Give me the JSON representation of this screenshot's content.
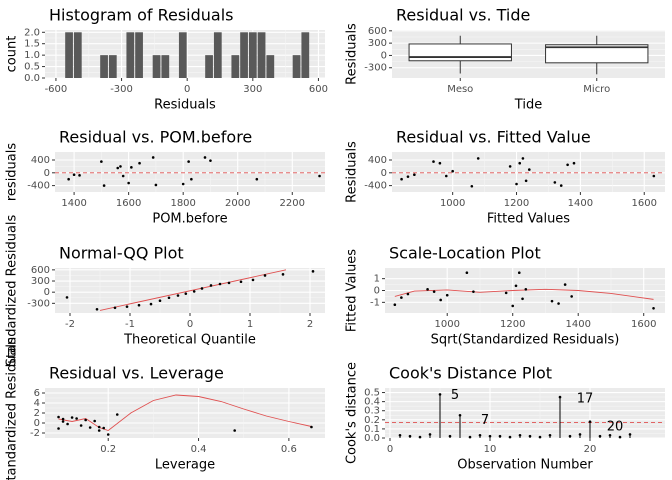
{
  "chart_data": [
    {
      "type": "histogram",
      "title": "Histogram of Residuals",
      "x_label": "Residuals",
      "y_label": "count",
      "bins": [
        -560,
        -520,
        -480,
        -440,
        -400,
        -360,
        -320,
        -280,
        -240,
        -200,
        -160,
        -120,
        -80,
        -40,
        0,
        40,
        80,
        120,
        160,
        200,
        240,
        280,
        320,
        360,
        400,
        440,
        480,
        520,
        560
      ],
      "values": [
        2,
        2,
        0,
        0,
        1,
        1,
        0,
        2,
        2,
        0,
        1,
        1,
        0,
        2,
        0,
        0,
        1,
        2,
        0,
        1,
        2,
        2,
        2,
        1,
        0,
        0,
        1,
        2
      ],
      "color": "#595959",
      "xlim": [
        -650,
        630
      ],
      "xticks": [
        -600,
        -300,
        0,
        300,
        600
      ],
      "ylim": [
        0,
        2.1
      ],
      "yticks": [
        {
          "value": 0,
          "label": "0.0"
        },
        {
          "value": 0.5,
          "label": "0.5"
        },
        {
          "value": 1,
          "label": "1.0"
        },
        {
          "value": 1.5,
          "label": "1.5"
        },
        {
          "value": 2,
          "label": "2.0"
        }
      ],
      "grid": true
    },
    {
      "type": "box",
      "title": "Residual vs. Tide",
      "x_label": "Tide",
      "y_label": "Residuals",
      "categories": [
        "Meso",
        "Micro"
      ],
      "boxes": [
        {
          "min": -440,
          "q1": -130,
          "median": -40,
          "q3": 280,
          "max": 480
        },
        {
          "min": -460,
          "q1": -180,
          "median": 200,
          "q3": 260,
          "max": 480
        }
      ],
      "color": "#ffffff",
      "ylim": [
        -550,
        620
      ],
      "yticks": [
        -300,
        0,
        300,
        600
      ],
      "grid": true
    },
    {
      "type": "scatter",
      "title": "Residual vs. POM.before",
      "x_label": "POM.before",
      "y_label": "residuals",
      "x": [
        1380,
        1400,
        1420,
        1500,
        1510,
        1560,
        1570,
        1580,
        1600,
        1610,
        1640,
        1690,
        1700,
        1800,
        1820,
        1830,
        1880,
        1900,
        2070,
        2300
      ],
      "values": [
        -200,
        -60,
        -80,
        350,
        -400,
        150,
        200,
        -100,
        -320,
        170,
        300,
        480,
        -380,
        -350,
        350,
        -200,
        480,
        380,
        -200,
        -100
      ],
      "color": "#000000",
      "hline": 0,
      "hline_color": "#e05050",
      "xlim": [
        1330,
        2320
      ],
      "xticks": [
        1400,
        1600,
        1800,
        2000,
        2200
      ],
      "ylim": [
        -600,
        650
      ],
      "yticks": [
        -400,
        0,
        400
      ],
      "grid": true
    },
    {
      "type": "scatter",
      "title": "Residual vs. Fitted Value",
      "x_label": "Fitted Values",
      "y_label": "Residuals",
      "x": [
        840,
        860,
        880,
        940,
        960,
        980,
        1000,
        1060,
        1080,
        1180,
        1200,
        1210,
        1220,
        1230,
        1240,
        1320,
        1340,
        1360,
        1380,
        1630
      ],
      "values": [
        -200,
        -120,
        -60,
        350,
        300,
        -100,
        50,
        -420,
        450,
        200,
        -350,
        300,
        450,
        -250,
        100,
        -300,
        -400,
        250,
        300,
        -100
      ],
      "color": "#000000",
      "hline": 0,
      "hline_color": "#e05050",
      "xlim": [
        810,
        1665
      ],
      "xticks": [
        1000,
        1200,
        1400,
        1600
      ],
      "ylim": [
        -600,
        650
      ],
      "yticks": [
        -400,
        0,
        400
      ],
      "grid": true
    },
    {
      "type": "scatter",
      "title": "Normal-QQ Plot",
      "x_label": "Theoretical Quantile",
      "y_label": "Standardized Residuals",
      "x": [
        -2.05,
        -1.55,
        -1.25,
        -1.05,
        -0.85,
        -0.65,
        -0.5,
        -0.35,
        -0.2,
        -0.07,
        0.07,
        0.2,
        0.35,
        0.5,
        0.65,
        0.85,
        1.05,
        1.25,
        1.55,
        2.05
      ],
      "values": [
        -140,
        -460,
        -420,
        -390,
        -350,
        -320,
        -230,
        -150,
        -90,
        -40,
        20,
        100,
        180,
        220,
        250,
        280,
        330,
        450,
        480,
        560
      ],
      "color": "#000000",
      "fit_line": {
        "x": [
          -1.5,
          1.6
        ],
        "values": [
          -490,
          600
        ],
        "color": "#e05050"
      },
      "xlim": [
        -2.25,
        2.25
      ],
      "xticks": [
        -2,
        -1,
        0,
        1,
        2
      ],
      "ylim": [
        -560,
        650
      ],
      "yticks": [
        -300,
        0,
        300,
        600
      ],
      "grid": true
    },
    {
      "type": "scatter",
      "title": "Scale-Location Plot",
      "x_label": "Sqrt(Standardized Residuals)",
      "y_label": "Fitted Values",
      "x": [
        840,
        860,
        880,
        940,
        960,
        980,
        1000,
        1060,
        1080,
        1180,
        1200,
        1210,
        1220,
        1230,
        1240,
        1320,
        1340,
        1360,
        1380,
        1630
      ],
      "values": [
        -1.2,
        -0.6,
        -0.3,
        0.1,
        -0.1,
        -0.8,
        -0.4,
        1.5,
        -0.1,
        -0.2,
        -1.3,
        0.4,
        1.5,
        -0.7,
        0.1,
        -0.9,
        -1.1,
        0.5,
        -0.5,
        -1.5
      ],
      "color": "#000000",
      "fit_line": {
        "x": [
          840,
          900,
          1000,
          1100,
          1200,
          1300,
          1400,
          1500,
          1630
        ],
        "values": [
          -0.5,
          -0.05,
          0.05,
          -0.15,
          0,
          0.1,
          0,
          -0.25,
          -0.75
        ],
        "color": "#e05050"
      },
      "xlim": [
        810,
        1665
      ],
      "xticks": [
        1000,
        1200,
        1400,
        1600
      ],
      "ylim": [
        -1.9,
        1.9
      ],
      "yticks": [
        -1,
        0,
        1
      ],
      "grid": true
    },
    {
      "type": "scatter",
      "title": "Residual vs. Leverage",
      "x_label": "Leverage",
      "y_label": "Standardized Residuals",
      "x": [
        0.09,
        0.09,
        0.1,
        0.1,
        0.11,
        0.12,
        0.13,
        0.14,
        0.15,
        0.16,
        0.17,
        0.18,
        0.18,
        0.19,
        0.2,
        0.22,
        0.48,
        0.65
      ],
      "values": [
        1.2,
        -1.1,
        0.8,
        0.3,
        -0.2,
        1.1,
        0.9,
        -0.5,
        0.6,
        -0.9,
        0.4,
        -1.5,
        -0.8,
        -1.0,
        -2.3,
        1.7,
        -1.5,
        -0.8
      ],
      "color": "#000000",
      "fit_line": {
        "x": [
          0.09,
          0.12,
          0.15,
          0.18,
          0.2,
          0.25,
          0.3,
          0.35,
          0.4,
          0.45,
          0.5,
          0.55,
          0.6,
          0.65
        ],
        "values": [
          0.8,
          0.3,
          0.9,
          -0.9,
          -1.5,
          2.0,
          4.5,
          5.6,
          5.3,
          4.3,
          2.8,
          1.4,
          0.3,
          -0.7
        ],
        "color": "#e05050"
      },
      "xlim": [
        0.06,
        0.68
      ],
      "xticks": [
        0.2,
        0.4,
        0.6
      ],
      "ylim": [
        -3,
        7
      ],
      "yticks": [
        -2,
        0,
        2,
        4,
        6
      ],
      "grid": true
    },
    {
      "type": "lollipop",
      "title": "Cook's Distance Plot",
      "x_label": "Observation Number",
      "y_label": "Cook's distance",
      "x": [
        1,
        2,
        3,
        4,
        5,
        6,
        7,
        8,
        9,
        10,
        11,
        12,
        13,
        14,
        15,
        16,
        17,
        18,
        19,
        20,
        21,
        22,
        23,
        24
      ],
      "values": [
        0.03,
        0.02,
        0.01,
        0.04,
        0.48,
        0.02,
        0.25,
        0.01,
        0.03,
        0.02,
        0.02,
        0.01,
        0.03,
        0.02,
        0.01,
        0.03,
        0.45,
        0.02,
        0.04,
        0.18,
        0.02,
        0.03,
        0.01,
        0.04
      ],
      "color": "#000000",
      "hline": 0.17,
      "hline_color": "#e05050",
      "annotations": [
        {
          "text": "5",
          "x": 6.5,
          "y": 0.47
        },
        {
          "text": "7",
          "x": 9.5,
          "y": 0.19
        },
        {
          "text": "17",
          "x": 19.5,
          "y": 0.43
        },
        {
          "text": "20",
          "x": 22.5,
          "y": 0.12
        }
      ],
      "annotation_color": "#e05050",
      "xlim": [
        -0.5,
        27.5
      ],
      "xticks": [
        0,
        10,
        20
      ],
      "ylim": [
        0,
        0.55
      ],
      "yticks": [
        {
          "value": 0,
          "label": "0.0"
        },
        {
          "value": 0.1,
          "label": "0.1"
        },
        {
          "value": 0.2,
          "label": "0.2"
        },
        {
          "value": 0.3,
          "label": "0.3"
        },
        {
          "value": 0.4,
          "label": "0.4"
        },
        {
          "value": 0.5,
          "label": "0.5"
        }
      ],
      "grid": true
    }
  ]
}
